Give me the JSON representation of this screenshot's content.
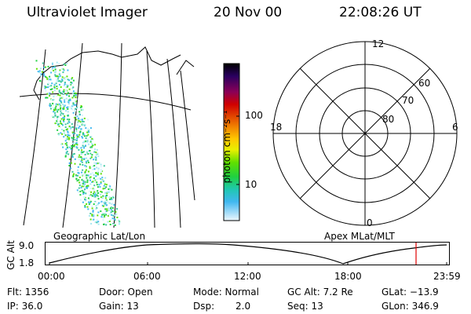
{
  "header": {
    "instrument": "Ultraviolet Imager",
    "date": "20 Nov 00",
    "time": "22:08:26 UT"
  },
  "colorbar": {
    "unit_label": "photon cm⁻²s⁻¹",
    "ticks": [
      "100",
      "10"
    ],
    "colors": [
      "#000000",
      "#2a0060",
      "#8a0058",
      "#d00000",
      "#e04000",
      "#f08000",
      "#ffc800",
      "#e8f000",
      "#60e000",
      "#20d040",
      "#20c8b0",
      "#40b8f0",
      "#d0f0ff"
    ]
  },
  "polar_plot": {
    "mlt_labels": {
      "top": "12",
      "left": "18",
      "right": "6",
      "bottom": "0"
    },
    "lat_labels": [
      "80",
      "70",
      "60"
    ]
  },
  "map_labels": {
    "left": "Geographic Lat/Lon",
    "right": "Apex MLat/MLT"
  },
  "altitude_strip": {
    "axis_title": "GC Alt",
    "y_ticks": [
      "9.0",
      "1.8"
    ],
    "x_ticks": [
      "00:00",
      "06:00",
      "12:00",
      "18:00",
      "23:59"
    ],
    "marker_color": "#e00000"
  },
  "footer": {
    "flt": "Flt: 1356",
    "ip": "IP: 36.0",
    "door": "Door: Open",
    "gain": "Gain: 13",
    "mode": "Mode: Normal",
    "dsp_label": "Dsp:",
    "dsp_value": "2.0",
    "gc_alt": "GC Alt: 7.2 Re",
    "seq": "Seq: 13",
    "glat": "GLat: −13.9",
    "glon": "GLon: 346.9"
  }
}
